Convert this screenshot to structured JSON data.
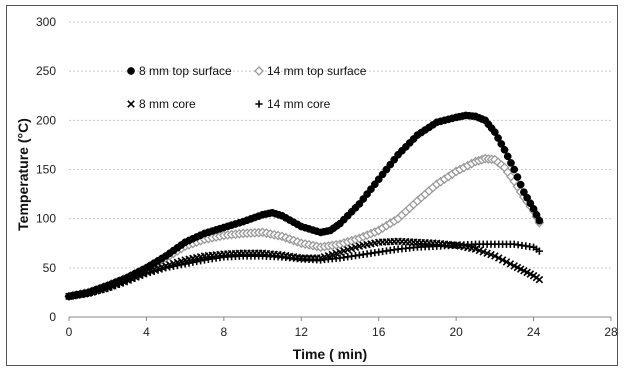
{
  "chart_data": {
    "type": "scatter",
    "title": "",
    "xlabel": "Time ( min)",
    "ylabel": "Temperature (°C)",
    "xlim": [
      0,
      28
    ],
    "ylim": [
      0,
      300
    ],
    "xticks": [
      0,
      4,
      8,
      12,
      16,
      20,
      24,
      28
    ],
    "yticks": [
      0,
      50,
      100,
      150,
      200,
      250,
      300
    ],
    "grid": "horizontal dotted",
    "legend_position": "top-left",
    "series": [
      {
        "name": "8 mm top surface",
        "marker": "filled-circle",
        "color": "#000000",
        "points": [
          [
            0,
            21
          ],
          [
            1,
            25
          ],
          [
            2,
            32
          ],
          [
            3,
            40
          ],
          [
            4,
            50
          ],
          [
            5,
            62
          ],
          [
            6,
            76
          ],
          [
            7,
            85
          ],
          [
            8,
            91
          ],
          [
            9,
            97
          ],
          [
            10,
            104
          ],
          [
            10.5,
            106
          ],
          [
            11,
            103
          ],
          [
            12,
            92
          ],
          [
            13,
            86
          ],
          [
            13.5,
            88
          ],
          [
            14,
            95
          ],
          [
            15,
            115
          ],
          [
            16,
            140
          ],
          [
            17,
            165
          ],
          [
            18,
            185
          ],
          [
            19,
            198
          ],
          [
            20,
            203
          ],
          [
            20.5,
            205
          ],
          [
            21,
            204
          ],
          [
            21.5,
            200
          ],
          [
            22,
            188
          ],
          [
            22.5,
            170
          ],
          [
            23,
            150
          ],
          [
            23.5,
            127
          ],
          [
            24,
            110
          ],
          [
            24.3,
            98
          ]
        ]
      },
      {
        "name": "14 mm top surface",
        "marker": "open-diamond",
        "color": "#9a9a9a",
        "points": [
          [
            0,
            21
          ],
          [
            1,
            25
          ],
          [
            2,
            32
          ],
          [
            3,
            40
          ],
          [
            4,
            50
          ],
          [
            5,
            60
          ],
          [
            6,
            72
          ],
          [
            7,
            79
          ],
          [
            8,
            83
          ],
          [
            9,
            85
          ],
          [
            10,
            86
          ],
          [
            11,
            82
          ],
          [
            12,
            75
          ],
          [
            13,
            71
          ],
          [
            14,
            74
          ],
          [
            15,
            80
          ],
          [
            16,
            88
          ],
          [
            17,
            100
          ],
          [
            18,
            118
          ],
          [
            19,
            135
          ],
          [
            20,
            148
          ],
          [
            21,
            158
          ],
          [
            21.5,
            161
          ],
          [
            22,
            160
          ],
          [
            22.5,
            152
          ],
          [
            23,
            138
          ],
          [
            23.5,
            122
          ],
          [
            24,
            108
          ],
          [
            24.3,
            96
          ]
        ]
      },
      {
        "name": "8 mm core",
        "marker": "x",
        "color": "#000000",
        "points": [
          [
            0,
            21
          ],
          [
            1,
            24
          ],
          [
            2,
            30
          ],
          [
            3,
            38
          ],
          [
            4,
            46
          ],
          [
            5,
            52
          ],
          [
            6,
            58
          ],
          [
            7,
            62
          ],
          [
            8,
            64
          ],
          [
            9,
            65
          ],
          [
            10,
            65
          ],
          [
            11,
            63
          ],
          [
            12,
            60
          ],
          [
            13,
            60
          ],
          [
            14,
            66
          ],
          [
            15,
            72
          ],
          [
            16,
            76
          ],
          [
            17,
            77
          ],
          [
            18,
            76
          ],
          [
            19,
            75
          ],
          [
            20,
            73
          ],
          [
            21,
            69
          ],
          [
            22,
            62
          ],
          [
            23,
            52
          ],
          [
            23.5,
            47
          ],
          [
            24,
            42
          ],
          [
            24.3,
            38
          ]
        ]
      },
      {
        "name": "14 mm core",
        "marker": "plus",
        "color": "#000000",
        "points": [
          [
            0,
            21
          ],
          [
            1,
            24
          ],
          [
            2,
            29
          ],
          [
            3,
            36
          ],
          [
            4,
            44
          ],
          [
            5,
            50
          ],
          [
            6,
            54
          ],
          [
            7,
            58
          ],
          [
            8,
            61
          ],
          [
            9,
            62
          ],
          [
            10,
            62
          ],
          [
            11,
            61
          ],
          [
            12,
            59
          ],
          [
            13,
            58
          ],
          [
            14,
            60
          ],
          [
            15,
            63
          ],
          [
            16,
            66
          ],
          [
            17,
            69
          ],
          [
            18,
            71
          ],
          [
            19,
            72
          ],
          [
            20,
            73
          ],
          [
            21,
            74
          ],
          [
            22,
            74
          ],
          [
            23,
            74
          ],
          [
            24,
            71
          ],
          [
            24.3,
            67
          ]
        ]
      }
    ]
  }
}
